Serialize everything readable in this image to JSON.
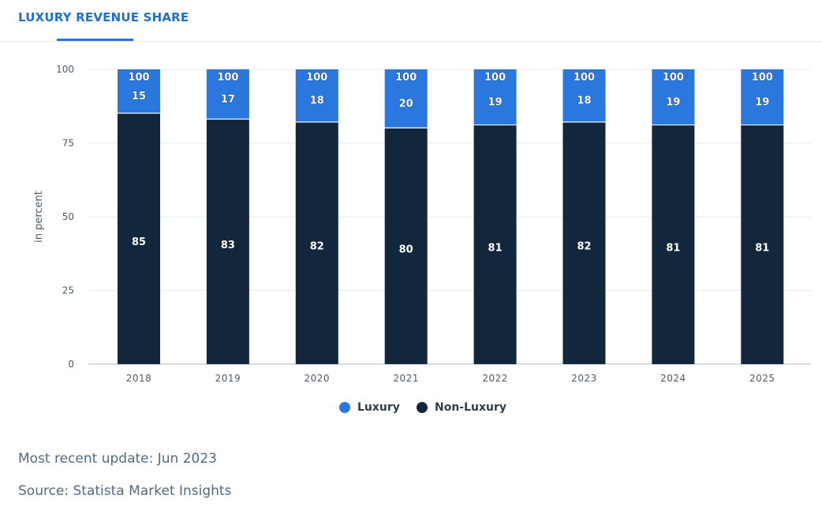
{
  "tabs": [
    {
      "label": "LUXURY REVENUE SHARE",
      "active": true
    }
  ],
  "footer": {
    "update": "Most recent update: Jun 2023",
    "source": "Source: Statista Market Insights"
  },
  "colors": {
    "luxury": "#2a78dd",
    "non_luxury": "#12263c",
    "grid": "#e6ebf0",
    "axis": "#cdd6e0",
    "tick": "#4d5a68"
  },
  "chart_data": {
    "type": "bar",
    "stacked": true,
    "categories": [
      "2018",
      "2019",
      "2020",
      "2021",
      "2022",
      "2023",
      "2024",
      "2025"
    ],
    "series": [
      {
        "name": "Non-Luxury",
        "values": [
          85,
          83,
          82,
          80,
          81,
          82,
          81,
          81
        ]
      },
      {
        "name": "Luxury",
        "values": [
          15,
          17,
          18,
          20,
          19,
          18,
          19,
          19
        ]
      }
    ],
    "totals": [
      100,
      100,
      100,
      100,
      100,
      100,
      100,
      100
    ],
    "ylabel": "in percent",
    "ylim": [
      0,
      100
    ],
    "yticks": [
      0,
      25,
      50,
      75,
      100
    ],
    "grid": true,
    "legend_position": "bottom"
  }
}
